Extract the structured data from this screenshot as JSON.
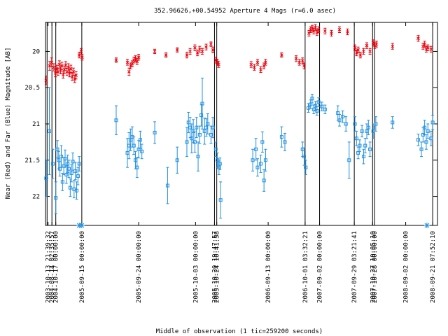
{
  "chart_data": {
    "type": "scatter",
    "title": "352.96626,+00.54952   Aperture 4 Mags (r=6.0 asec)",
    "xlabel": "Middle of observation (1 tic=259200 seconds)",
    "ylabel": "Near (Red) and Far (Blue) Magnitude [AB]",
    "y_inverted": true,
    "ylim": [
      22.4,
      19.6
    ],
    "grid": false,
    "legend": "none",
    "y_ticks": [
      "20",
      "20.5",
      "21",
      "21.5",
      "22"
    ],
    "y_tick_values": [
      20,
      20.5,
      21,
      21.5,
      22
    ],
    "x_tick_labels": [
      "2003-10-13 21:39:32",
      "2004-08-14 02:35:57",
      "2004-10-17 00:00:00",
      "2005-09-15 00:00:00",
      "2005-09-24 00:00:00",
      "2005-10-03 00:00:00",
      "2005-10-20 19:47:57",
      "2005-10-24 10:41:58",
      "2006-09-13 00:00:00",
      "2006-10-01 03:32:21",
      "2007-09-02 00:00:00",
      "2007-09-29 03:21:41",
      "2007-10-27 10:05:10",
      "2007-10-28 00:00:00",
      "2008-09-02 00:00:00",
      "2008-09-21 07:52:10"
    ],
    "x_tick_index": [
      0.3,
      1.5,
      2.7,
      10.8,
      28.5,
      46.2,
      52.1,
      52.8,
      68.8,
      80.3,
      84.8,
      95.6,
      101.3,
      101.9,
      111.6,
      120.0
    ],
    "segment_boundaries": [
      0,
      1.5,
      2.7,
      10.8,
      52.1,
      52.8,
      80.3,
      84.8,
      95.6,
      101.3,
      101.9,
      120.0
    ],
    "xlim": [
      -0.5,
      121.5
    ],
    "colors": {
      "near": "#e8000b",
      "far": "#1f8fe0",
      "axis": "#000000"
    },
    "upper_limit_markers": [
      10.0,
      10.8,
      118.2
    ],
    "series": [
      {
        "name": "Near (Red)",
        "marker": "x",
        "points": [
          [
            -0.3,
            20.4,
            0.06
          ],
          [
            0.8,
            20.2,
            0.06
          ],
          [
            1.4,
            20.15,
            0.06
          ],
          [
            2.1,
            20.22,
            0.05
          ],
          [
            2.6,
            20.3,
            0.05
          ],
          [
            3.0,
            20.24,
            0.05
          ],
          [
            3.4,
            20.28,
            0.05
          ],
          [
            3.8,
            20.18,
            0.05
          ],
          [
            4.2,
            20.26,
            0.05
          ],
          [
            4.6,
            20.2,
            0.05
          ],
          [
            5.0,
            20.32,
            0.05
          ],
          [
            5.4,
            20.25,
            0.05
          ],
          [
            5.8,
            20.19,
            0.05
          ],
          [
            6.2,
            20.28,
            0.05
          ],
          [
            6.6,
            20.22,
            0.05
          ],
          [
            7.0,
            20.3,
            0.05
          ],
          [
            7.4,
            20.24,
            0.05
          ],
          [
            7.8,
            20.35,
            0.05
          ],
          [
            8.2,
            20.28,
            0.05
          ],
          [
            8.6,
            20.38,
            0.05
          ],
          [
            9.0,
            20.33,
            0.05
          ],
          [
            10.0,
            20.05,
            0.04
          ],
          [
            10.6,
            20.0,
            0.04
          ],
          [
            10.9,
            20.08,
            0.04
          ],
          [
            21.5,
            20.12,
            0.03
          ],
          [
            25.0,
            20.15,
            0.04
          ],
          [
            25.5,
            20.28,
            0.05
          ],
          [
            26.0,
            20.2,
            0.04
          ],
          [
            26.5,
            20.17,
            0.04
          ],
          [
            27.0,
            20.12,
            0.04
          ],
          [
            27.5,
            20.1,
            0.04
          ],
          [
            28.0,
            20.14,
            0.04
          ],
          [
            28.5,
            20.08,
            0.04
          ],
          [
            33.5,
            20.0,
            0.03
          ],
          [
            37.0,
            20.05,
            0.03
          ],
          [
            40.5,
            19.98,
            0.03
          ],
          [
            43.5,
            20.05,
            0.04
          ],
          [
            44.5,
            20.0,
            0.04
          ],
          [
            46.0,
            19.95,
            0.04
          ],
          [
            46.8,
            20.02,
            0.04
          ],
          [
            47.5,
            19.97,
            0.04
          ],
          [
            48.3,
            20.0,
            0.04
          ],
          [
            49.5,
            19.94,
            0.04
          ],
          [
            51.0,
            19.9,
            0.03
          ],
          [
            51.6,
            19.98,
            0.04
          ],
          [
            52.5,
            20.12,
            0.04
          ],
          [
            53.0,
            20.15,
            0.04
          ],
          [
            53.4,
            20.18,
            0.04
          ],
          [
            63.5,
            20.18,
            0.04
          ],
          [
            64.5,
            20.22,
            0.04
          ],
          [
            65.5,
            20.15,
            0.04
          ],
          [
            66.5,
            20.25,
            0.04
          ],
          [
            67.5,
            20.2,
            0.04
          ],
          [
            68.0,
            20.15,
            0.04
          ],
          [
            73.0,
            20.05,
            0.03
          ],
          [
            77.5,
            20.1,
            0.04
          ],
          [
            78.5,
            20.15,
            0.04
          ],
          [
            79.5,
            20.13,
            0.04
          ],
          [
            80.0,
            20.2,
            0.04
          ],
          [
            81.5,
            19.75,
            0.04
          ],
          [
            82.0,
            19.7,
            0.04
          ],
          [
            82.5,
            19.68,
            0.04
          ],
          [
            83.0,
            19.72,
            0.04
          ],
          [
            83.5,
            19.67,
            0.04
          ],
          [
            84.0,
            19.74,
            0.04
          ],
          [
            84.5,
            19.7,
            0.04
          ],
          [
            86.5,
            19.72,
            0.04
          ],
          [
            88.5,
            19.75,
            0.04
          ],
          [
            91.0,
            19.7,
            0.04
          ],
          [
            93.5,
            19.73,
            0.04
          ],
          [
            95.8,
            19.95,
            0.04
          ],
          [
            96.3,
            20.02,
            0.04
          ],
          [
            96.8,
            19.98,
            0.04
          ],
          [
            97.5,
            20.05,
            0.04
          ],
          [
            98.5,
            20.0,
            0.04
          ],
          [
            99.5,
            19.92,
            0.04
          ],
          [
            100.5,
            20.0,
            0.04
          ],
          [
            101.5,
            19.88,
            0.04
          ],
          [
            102.0,
            19.92,
            0.04
          ],
          [
            102.5,
            19.9,
            0.04
          ],
          [
            107.5,
            19.93,
            0.04
          ],
          [
            115.5,
            19.82,
            0.04
          ],
          [
            117.0,
            19.93,
            0.04
          ],
          [
            117.5,
            19.9,
            0.04
          ],
          [
            118.0,
            19.97,
            0.04
          ],
          [
            118.5,
            19.95,
            0.04
          ],
          [
            119.5,
            19.97,
            0.04
          ]
        ]
      },
      {
        "name": "Far (Blue)",
        "marker": "square",
        "points": [
          [
            -0.3,
            21.75,
            0.25
          ],
          [
            0.7,
            21.1,
            0.6
          ],
          [
            1.8,
            21.55,
            0.2
          ],
          [
            2.7,
            22.02,
            0.22
          ],
          [
            3.2,
            21.35,
            0.12
          ],
          [
            3.6,
            21.5,
            0.12
          ],
          [
            4.0,
            21.62,
            0.1
          ],
          [
            4.4,
            21.45,
            0.15
          ],
          [
            4.8,
            21.8,
            0.12
          ],
          [
            5.2,
            21.58,
            0.12
          ],
          [
            5.6,
            21.48,
            0.12
          ],
          [
            6.0,
            21.7,
            0.12
          ],
          [
            6.4,
            21.55,
            0.12
          ],
          [
            6.8,
            21.62,
            0.12
          ],
          [
            7.2,
            21.88,
            0.12
          ],
          [
            7.6,
            21.68,
            0.12
          ],
          [
            8.0,
            21.52,
            0.12
          ],
          [
            8.4,
            21.9,
            0.12
          ],
          [
            8.8,
            21.65,
            0.12
          ],
          [
            9.2,
            21.92,
            0.12
          ],
          [
            9.6,
            21.72,
            0.12
          ],
          [
            10.0,
            21.55,
            0.1
          ],
          [
            21.5,
            20.95,
            0.2
          ],
          [
            25.0,
            21.4,
            0.2
          ],
          [
            25.5,
            21.3,
            0.18
          ],
          [
            26.0,
            21.22,
            0.15
          ],
          [
            26.5,
            21.18,
            0.14
          ],
          [
            27.0,
            21.3,
            0.12
          ],
          [
            27.5,
            21.5,
            0.12
          ],
          [
            28.0,
            21.6,
            0.14
          ],
          [
            28.5,
            21.35,
            0.12
          ],
          [
            29.0,
            21.22,
            0.12
          ],
          [
            29.5,
            21.38,
            0.1
          ],
          [
            33.5,
            21.12,
            0.15
          ],
          [
            37.5,
            21.85,
            0.25
          ],
          [
            40.5,
            21.5,
            0.18
          ],
          [
            43.5,
            21.25,
            0.2
          ],
          [
            44.0,
            20.98,
            0.14
          ],
          [
            44.5,
            21.05,
            0.14
          ],
          [
            45.0,
            21.2,
            0.2
          ],
          [
            45.5,
            21.1,
            0.16
          ],
          [
            46.0,
            21.25,
            0.14
          ],
          [
            46.5,
            21.05,
            0.14
          ],
          [
            47.0,
            21.45,
            0.2
          ],
          [
            47.5,
            21.15,
            0.12
          ],
          [
            48.0,
            20.88,
            0.15
          ],
          [
            48.3,
            20.72,
            0.35
          ],
          [
            49.0,
            21.1,
            0.18
          ],
          [
            49.5,
            21.05,
            0.12
          ],
          [
            50.0,
            21.0,
            0.14
          ],
          [
            51.0,
            21.15,
            0.12
          ],
          [
            51.6,
            21.05,
            0.14
          ],
          [
            52.5,
            21.35,
            0.1
          ],
          [
            53.0,
            21.5,
            0.1
          ],
          [
            53.5,
            21.6,
            0.1
          ],
          [
            54.0,
            22.05,
            0.25
          ],
          [
            53.8,
            21.55,
            0.08
          ],
          [
            64.0,
            21.5,
            0.15
          ],
          [
            65.0,
            21.35,
            0.15
          ],
          [
            65.5,
            21.6,
            0.12
          ],
          [
            66.5,
            21.55,
            0.12
          ],
          [
            67.0,
            21.25,
            0.14
          ],
          [
            67.5,
            21.78,
            0.15
          ],
          [
            68.0,
            21.5,
            0.15
          ],
          [
            73.0,
            21.18,
            0.14
          ],
          [
            74.0,
            21.25,
            0.12
          ],
          [
            79.5,
            21.35,
            0.1
          ],
          [
            80.0,
            21.45,
            0.12
          ],
          [
            80.5,
            21.6,
            0.1
          ],
          [
            81.3,
            20.78,
            0.06
          ],
          [
            82.0,
            20.73,
            0.06
          ],
          [
            82.5,
            20.65,
            0.06
          ],
          [
            83.0,
            20.8,
            0.06
          ],
          [
            83.5,
            20.75,
            0.06
          ],
          [
            84.0,
            20.82,
            0.06
          ],
          [
            84.5,
            20.7,
            0.06
          ],
          [
            85.5,
            20.76,
            0.06
          ],
          [
            86.5,
            20.8,
            0.06
          ],
          [
            90.5,
            20.85,
            0.1
          ],
          [
            91.0,
            20.95,
            0.08
          ],
          [
            92.0,
            20.9,
            0.08
          ],
          [
            93.0,
            21.0,
            0.1
          ],
          [
            94.0,
            21.5,
            0.25
          ],
          [
            95.8,
            21.0,
            0.1
          ],
          [
            96.3,
            21.2,
            0.1
          ],
          [
            96.8,
            21.4,
            0.08
          ],
          [
            97.3,
            21.3,
            0.08
          ],
          [
            98.0,
            21.1,
            0.08
          ],
          [
            98.5,
            21.45,
            0.1
          ],
          [
            99.0,
            21.3,
            0.1
          ],
          [
            99.5,
            21.1,
            0.1
          ],
          [
            100.0,
            21.05,
            0.1
          ],
          [
            100.5,
            21.35,
            0.1
          ],
          [
            101.5,
            21.1,
            0.1
          ],
          [
            102.3,
            21.0,
            0.1
          ],
          [
            107.5,
            20.98,
            0.08
          ],
          [
            115.5,
            21.22,
            0.08
          ],
          [
            116.5,
            21.35,
            0.1
          ],
          [
            117.0,
            21.15,
            0.1
          ],
          [
            117.5,
            21.05,
            0.1
          ],
          [
            118.0,
            21.25,
            0.1
          ],
          [
            118.5,
            21.1,
            0.1
          ],
          [
            119.5,
            21.2,
            0.1
          ],
          [
            120.0,
            20.98,
            0.1
          ]
        ]
      }
    ]
  }
}
